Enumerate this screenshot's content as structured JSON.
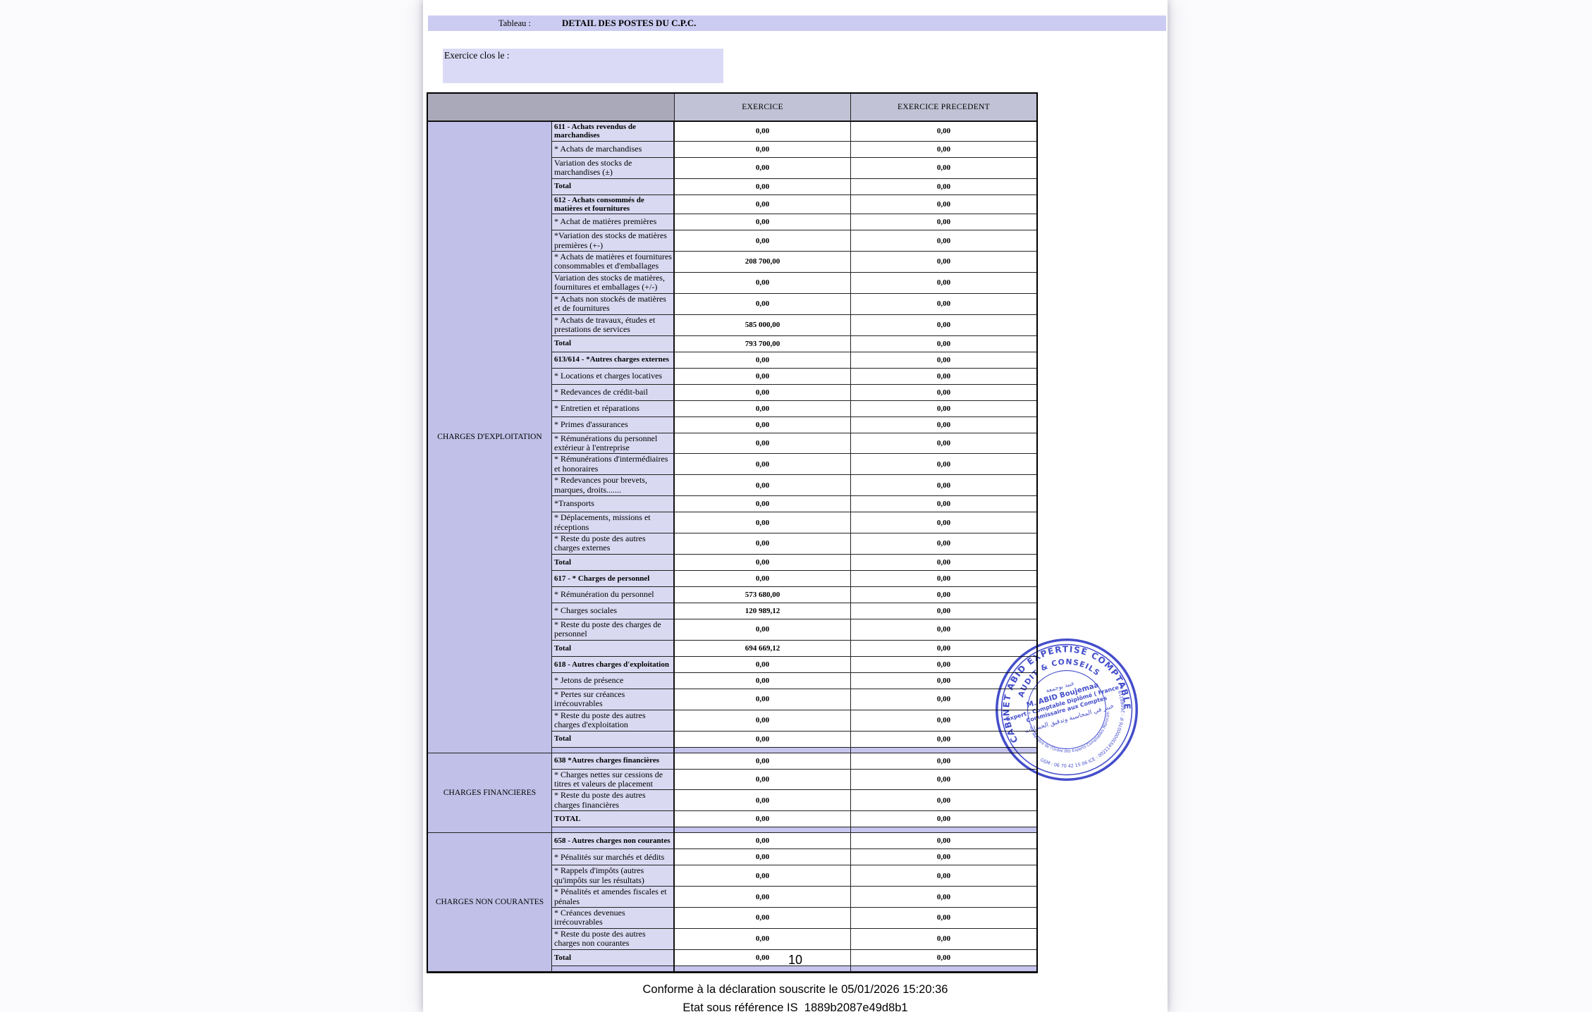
{
  "header": {
    "tableau_label": "Tableau :",
    "title": "DETAIL DES POSTES DU C.P.C."
  },
  "exercice_clos": {
    "label": "Exercice clos le :",
    "value": ""
  },
  "table": {
    "col_headers": {
      "exercice": "EXERCICE",
      "precedent": "EXERCICE PRECEDENT"
    },
    "sections": [
      {
        "name": "CHARGES D'EXPLOITATION",
        "rows": [
          {
            "label": "611 - Achats revendus de marchandises",
            "exercice": "0,00",
            "precedent": "0,00",
            "bold": true
          },
          {
            "label": "* Achats de marchandises",
            "exercice": "0,00",
            "precedent": "0,00",
            "bold": false
          },
          {
            "label": "Variation des stocks de marchandises (±)",
            "exercice": "0,00",
            "precedent": "0,00",
            "bold": false
          },
          {
            "label": "Total",
            "exercice": "0,00",
            "precedent": "0,00",
            "bold": true
          },
          {
            "label": "612 - Achats consommés de matières et fournitures",
            "exercice": "0,00",
            "precedent": "0,00",
            "bold": true
          },
          {
            "label": "* Achat de matières premières",
            "exercice": "0,00",
            "precedent": "0,00",
            "bold": false
          },
          {
            "label": "*Variation des stocks de matières premières (+-)",
            "exercice": "0,00",
            "precedent": "0,00",
            "bold": false
          },
          {
            "label": "* Achats de matières et fournitures consommables et d'emballages",
            "exercice": "208 700,00",
            "precedent": "0,00",
            "bold": false
          },
          {
            "label": " Variation des stocks de matières, fournitures et emballages (+/-)",
            "exercice": "0,00",
            "precedent": "0,00",
            "bold": false
          },
          {
            "label": "* Achats non stockés de matières et de fournitures",
            "exercice": "0,00",
            "precedent": "0,00",
            "bold": false
          },
          {
            "label": "* Achats de travaux, études et prestations de services",
            "exercice": "585 000,00",
            "precedent": "0,00",
            "bold": false
          },
          {
            "label": "Total",
            "exercice": "793 700,00",
            "precedent": "0,00",
            "bold": true
          },
          {
            "label": "613/614 - *Autres charges externes",
            "exercice": "0,00",
            "precedent": "0,00",
            "bold": true
          },
          {
            "label": "* Locations et charges locatives",
            "exercice": "0,00",
            "precedent": "0,00",
            "bold": false
          },
          {
            "label": "* Redevances de crédit-bail",
            "exercice": "0,00",
            "precedent": "0,00",
            "bold": false
          },
          {
            "label": "* Entretien et réparations",
            "exercice": "0,00",
            "precedent": "0,00",
            "bold": false
          },
          {
            "label": "* Primes d'assurances",
            "exercice": "0,00",
            "precedent": "0,00",
            "bold": false
          },
          {
            "label": "* Rémunérations du personnel extérieur à l'entreprise",
            "exercice": "0,00",
            "precedent": "0,00",
            "bold": false
          },
          {
            "label": "* Rémunérations d'intermédiaires et honoraires",
            "exercice": "0,00",
            "precedent": "0,00",
            "bold": false
          },
          {
            "label": "* Redevances pour brevets, marques, droits.......",
            "exercice": "0,00",
            "precedent": "0,00",
            "bold": false
          },
          {
            "label": "*Transports",
            "exercice": "0,00",
            "precedent": "0,00",
            "bold": false
          },
          {
            "label": "* Déplacements, missions et réceptions",
            "exercice": "0,00",
            "precedent": "0,00",
            "bold": false
          },
          {
            "label": "* Reste du poste des autres charges externes",
            "exercice": "0,00",
            "precedent": "0,00",
            "bold": false
          },
          {
            "label": "Total",
            "exercice": "0,00",
            "precedent": "0,00",
            "bold": true
          },
          {
            "label": "617 - * Charges de personnel",
            "exercice": "0,00",
            "precedent": "0,00",
            "bold": true
          },
          {
            "label": "* Rémunération du personnel",
            "exercice": "573 680,00",
            "precedent": "0,00",
            "bold": false
          },
          {
            "label": "* Charges sociales",
            "exercice": "120 989,12",
            "precedent": "0,00",
            "bold": false
          },
          {
            "label": "* Reste du poste des charges de personnel",
            "exercice": "0,00",
            "precedent": "0,00",
            "bold": false
          },
          {
            "label": "Total",
            "exercice": "694 669,12",
            "precedent": "0,00",
            "bold": true
          },
          {
            "label": "618 - Autres charges d'exploitation",
            "exercice": "0,00",
            "precedent": "0,00",
            "bold": true
          },
          {
            "label": "* Jetons de présence",
            "exercice": "0,00",
            "precedent": "0,00",
            "bold": false
          },
          {
            "label": "* Pertes sur créances irrécouvrables",
            "exercice": "0,00",
            "precedent": "0,00",
            "bold": false
          },
          {
            "label": "* Reste du poste des autres charges d'exploitation",
            "exercice": "0,00",
            "precedent": "0,00",
            "bold": false
          },
          {
            "label": "Total",
            "exercice": "0,00",
            "precedent": "0,00",
            "bold": true
          }
        ]
      },
      {
        "name": "CHARGES FINANCIERES",
        "rows": [
          {
            "label": "638 *Autres charges financières",
            "exercice": "0,00",
            "precedent": "0,00",
            "bold": true
          },
          {
            "label": "* Charges nettes sur cessions de titres et valeurs de placement",
            "exercice": "0,00",
            "precedent": "0,00",
            "bold": false
          },
          {
            "label": "* Reste du poste des autres charges financières",
            "exercice": "0,00",
            "precedent": "0,00",
            "bold": false
          },
          {
            "label": "TOTAL",
            "exercice": "0,00",
            "precedent": "0,00",
            "bold": true
          }
        ]
      },
      {
        "name": "CHARGES NON COURANTES",
        "rows": [
          {
            "label": "658 - Autres  charges non courantes",
            "exercice": "0,00",
            "precedent": "0,00",
            "bold": true
          },
          {
            "label": "* Pénalités sur marchés et dédits",
            "exercice": "0,00",
            "precedent": "0,00",
            "bold": false
          },
          {
            "label": "* Rappels d'impôts (autres qu'impôts sur les résultats)",
            "exercice": "0,00",
            "precedent": "0,00",
            "bold": false
          },
          {
            "label": "* Pénalités et amendes fiscales et pénales",
            "exercice": "0,00",
            "precedent": "0,00",
            "bold": false
          },
          {
            "label": "* Créances devenues irrécouvrables",
            "exercice": "0,00",
            "precedent": "0,00",
            "bold": false
          },
          {
            "label": "* Reste du poste des autres charges non courantes",
            "exercice": "0,00",
            "precedent": "0,00",
            "bold": false
          },
          {
            "label": "Total",
            "exercice": "0,00",
            "precedent": "0,00",
            "bold": true
          }
        ]
      }
    ]
  },
  "stamp": {
    "outer_arc": "CABINET ABID EXPERTISE COMPTABLE",
    "second_arc": "AUDIT & CONSEILS",
    "arabic_name": "عبيد بوجمعة",
    "name": "M. ABID Boujemaa",
    "title1": "Expert - Comptable Diplômé ( France )",
    "title2": "Commissaire aux Comptes",
    "arabic_title": "خبير في المحاسبة وتدقيق الحسابات",
    "bottom_inner_arc": "Membre de l'Ordre des Experts Comptables Marocain",
    "bottom_outer_arc": "GSM : 06 70 42 15 06 ICE : 002114930000076 IF : 26088219"
  },
  "footer": {
    "page_number": "10",
    "line1": "Conforme à la déclaration souscrite le 05/01/2026 15:20:36",
    "line2": "Etat sous référence IS_1889b2087e49d8b1"
  },
  "colors": {
    "title_bar_lavender": "#ccccf2",
    "label_cell_lavender": "#dad9f2",
    "section_column_lavender": "#c1c0e8",
    "separator_lavender": "#c6c5ee",
    "header_gray": "#a9a9ba",
    "header_cell_lavender": "#c2c2d6",
    "stamp_blue": "#2a35c4"
  }
}
